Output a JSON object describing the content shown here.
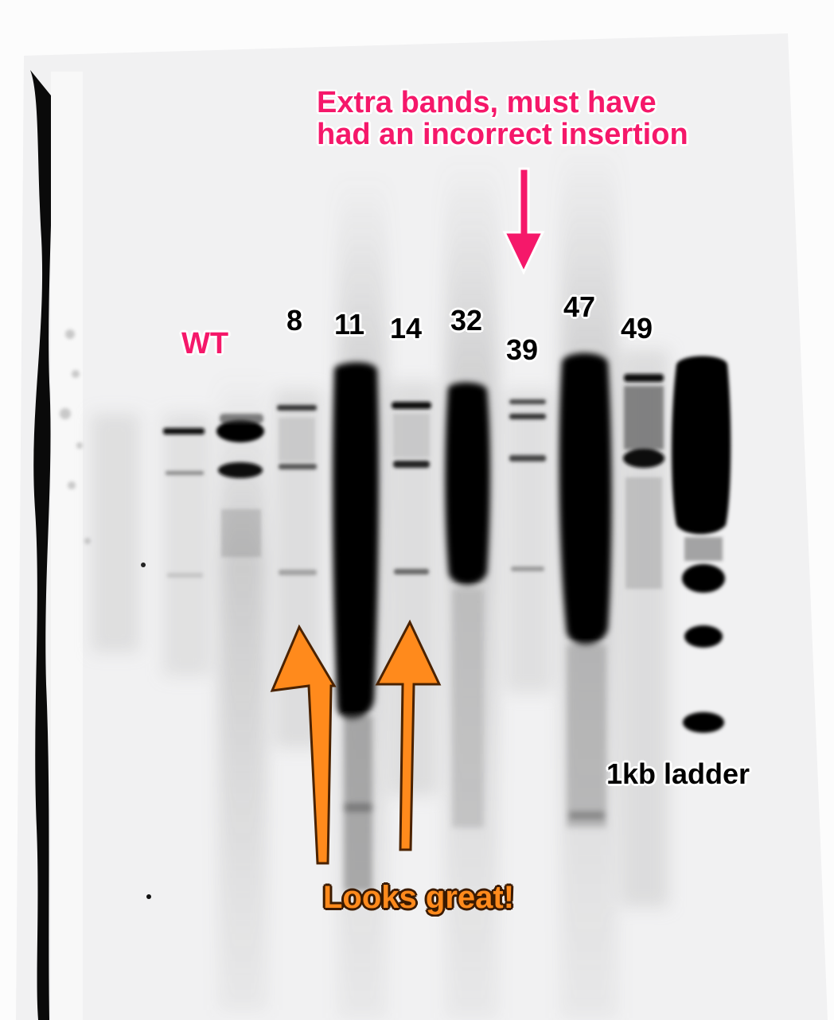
{
  "image": {
    "subject": "gel-blot",
    "background": "#f2f2f3",
    "band_color": "#000000"
  },
  "lanes": [
    {
      "label": "WT"
    },
    {
      "label": "8"
    },
    {
      "label": "11"
    },
    {
      "label": "14"
    },
    {
      "label": "32"
    },
    {
      "label": "39"
    },
    {
      "label": "47"
    },
    {
      "label": "49"
    },
    {
      "label": "1kb ladder"
    }
  ],
  "annotations": {
    "extra_bands": {
      "line1": "Extra bands, must have",
      "line2": "had an incorrect insertion",
      "color": "#f5186a",
      "arrow_icon": "down-arrow-icon"
    },
    "looks_great": {
      "text": "Looks great!",
      "color": "#ff8a1c",
      "arrow_icon": "up-arrow-icon"
    }
  }
}
